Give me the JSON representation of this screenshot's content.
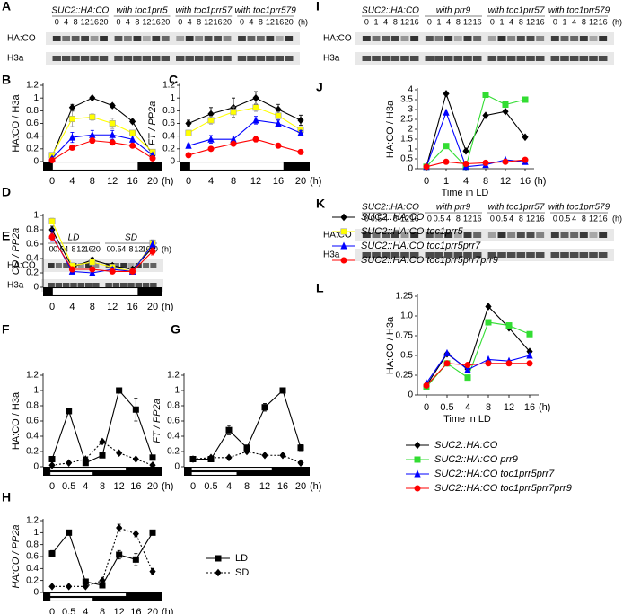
{
  "blots": [
    {
      "label": "A",
      "groups": [
        {
          "name": "SUC2::HA:CO",
          "times": [
            "0",
            "4",
            "8",
            "12",
            "16",
            "20"
          ]
        },
        {
          "name": "with toc1prr5",
          "times": [
            "0",
            "4",
            "8",
            "12",
            "16",
            "20"
          ]
        },
        {
          "name": "with toc1prr57",
          "times": [
            "0",
            "4",
            "8",
            "12",
            "16",
            "20"
          ]
        },
        {
          "name": "with toc1prr579",
          "times": [
            "0",
            "4",
            "8",
            "12",
            "16",
            "20"
          ]
        }
      ],
      "unit": "(h)",
      "rows": [
        "HA:CO",
        "H3a"
      ]
    },
    {
      "label": "E",
      "groups": [
        {
          "name": "LD",
          "times": [
            "0",
            "0.5",
            "4",
            "8",
            "12",
            "16",
            "20"
          ]
        },
        {
          "name": "SD",
          "times": [
            "0",
            "0.5",
            "4",
            "8",
            "12",
            "16",
            "20"
          ]
        }
      ],
      "unit": "(h)",
      "rows": [
        "HA:CO",
        "H3a"
      ]
    },
    {
      "label": "I",
      "groups": [
        {
          "name": "SUC2::HA:CO",
          "times": [
            "0",
            "1",
            "4",
            "8",
            "12",
            "16"
          ]
        },
        {
          "name": "with prr9",
          "times": [
            "0",
            "1",
            "4",
            "8",
            "12",
            "16"
          ]
        },
        {
          "name": "with toc1prr57",
          "times": [
            "0",
            "1",
            "4",
            "8",
            "12",
            "16"
          ]
        },
        {
          "name": "with toc1prr579",
          "times": [
            "0",
            "1",
            "4",
            "8",
            "12",
            "16"
          ]
        }
      ],
      "unit": "(h)",
      "rows": [
        "HA:CO",
        "H3a"
      ]
    },
    {
      "label": "K",
      "groups": [
        {
          "name": "SUC2::HA:CO",
          "times": [
            "0",
            "0.5",
            "4",
            "8",
            "12",
            "16"
          ]
        },
        {
          "name": "with prr9",
          "times": [
            "0",
            "0.5",
            "4",
            "8",
            "12",
            "16"
          ]
        },
        {
          "name": "with toc1prr57",
          "times": [
            "0",
            "0.5",
            "4",
            "8",
            "12",
            "16"
          ]
        },
        {
          "name": "with toc1prr579",
          "times": [
            "0",
            "0.5",
            "4",
            "8",
            "12",
            "16"
          ]
        }
      ],
      "unit": "(h)",
      "rows": [
        "HA:CO",
        "H3a"
      ]
    }
  ],
  "chart_data": [
    {
      "label": "B",
      "type": "line",
      "ylabel": "HA:CO / H3a",
      "categories": [
        "0",
        "4",
        "8",
        "12",
        "16",
        "20"
      ],
      "x_unit": "(h)",
      "ylim": [
        0,
        1.2
      ],
      "yticks": [
        0,
        0.2,
        0.4,
        0.6,
        0.8,
        1,
        1.2
      ],
      "series": [
        {
          "color": "#000000",
          "marker": "diamond",
          "values": [
            0.08,
            0.85,
            1.0,
            0.88,
            0.63,
            0.1
          ],
          "errors": [
            0.02,
            0.05,
            0.02,
            0.03,
            0.03,
            0.02
          ]
        },
        {
          "color": "#ffff00",
          "marker": "square",
          "values": [
            0.1,
            0.67,
            0.7,
            0.6,
            0.45,
            0.15
          ],
          "errors": [
            0.03,
            0.12,
            0.05,
            0.08,
            0.04,
            0.02
          ]
        },
        {
          "color": "#0000ff",
          "marker": "triangle",
          "values": [
            0.05,
            0.38,
            0.42,
            0.42,
            0.35,
            0.1
          ],
          "errors": [
            0.02,
            0.08,
            0.07,
            0.07,
            0.05,
            0.02
          ]
        },
        {
          "color": "#ff0000",
          "marker": "circle",
          "values": [
            0.02,
            0.22,
            0.33,
            0.3,
            0.25,
            0.05
          ],
          "errors": [
            0.02,
            0.04,
            0.04,
            0.03,
            0.03,
            0.02
          ]
        }
      ]
    },
    {
      "label": "C",
      "type": "line",
      "ylabel": "FT / PP2a",
      "categories": [
        "0",
        "4",
        "8",
        "12",
        "16",
        "20"
      ],
      "x_unit": "(h)",
      "ylim": [
        0,
        1.2
      ],
      "yticks": [
        0,
        0.2,
        0.4,
        0.6,
        0.8,
        1,
        1.2
      ],
      "series": [
        {
          "color": "#000000",
          "marker": "diamond",
          "values": [
            0.6,
            0.75,
            0.85,
            1.0,
            0.82,
            0.65
          ],
          "errors": [
            0.05,
            0.1,
            0.15,
            0.1,
            0.08,
            0.08
          ]
        },
        {
          "color": "#ffff00",
          "marker": "square",
          "values": [
            0.45,
            0.65,
            0.78,
            0.85,
            0.72,
            0.5
          ],
          "errors": [
            0.04,
            0.06,
            0.08,
            0.06,
            0.06,
            0.05
          ]
        },
        {
          "color": "#0000ff",
          "marker": "triangle",
          "values": [
            0.25,
            0.35,
            0.35,
            0.65,
            0.6,
            0.45
          ],
          "errors": [
            0.03,
            0.06,
            0.05,
            0.06,
            0.05,
            0.04
          ]
        },
        {
          "color": "#ff0000",
          "marker": "circle",
          "values": [
            0.1,
            0.2,
            0.28,
            0.35,
            0.25,
            0.15
          ],
          "errors": [
            0.02,
            0.02,
            0.03,
            0.04,
            0.03,
            0.02
          ]
        }
      ]
    },
    {
      "label": "D",
      "type": "line",
      "ylabel": "CO / PP2a",
      "categories": [
        "0",
        "4",
        "8",
        "12",
        "16",
        "20"
      ],
      "x_unit": "(h)",
      "ylim": [
        0,
        1
      ],
      "yticks": [
        0,
        0.2,
        0.4,
        0.6,
        0.8,
        1
      ],
      "series": [
        {
          "name": "SUC2::HA:CO",
          "color": "#000000",
          "marker": "diamond",
          "values": [
            0.8,
            0.28,
            0.38,
            0.3,
            0.25,
            0.55
          ],
          "errors": [
            0.05,
            0.03,
            0.03,
            0.03,
            0.03,
            0.05
          ]
        },
        {
          "name": "SUC2::HA:CO toc1prr5",
          "color": "#ffff00",
          "marker": "square",
          "values": [
            0.92,
            0.3,
            0.35,
            0.28,
            0.22,
            0.62
          ],
          "errors": [
            0.04,
            0.03,
            0.03,
            0.03,
            0.03,
            0.04
          ]
        },
        {
          "name": "SUC2::HA:CO toc1prr5prr7",
          "color": "#0000ff",
          "marker": "triangle",
          "values": [
            0.72,
            0.22,
            0.2,
            0.25,
            0.22,
            0.6
          ],
          "errors": [
            0.08,
            0.03,
            0.03,
            0.03,
            0.03,
            0.05
          ]
        },
        {
          "name": "SUC2::HA:CO toc1prr5prr7prr9",
          "color": "#ff0000",
          "marker": "circle",
          "values": [
            0.7,
            0.25,
            0.25,
            0.22,
            0.22,
            0.5
          ],
          "errors": [
            0.05,
            0.03,
            0.03,
            0.03,
            0.03,
            0.05
          ]
        }
      ]
    },
    {
      "label": "F",
      "type": "line",
      "ylabel": "HA:CO / H3a",
      "categories": [
        "0",
        "0.5",
        "4",
        "8",
        "12",
        "16",
        "20"
      ],
      "x_unit": "(h)",
      "ylim": [
        0,
        1.2
      ],
      "yticks": [
        0,
        0.2,
        0.4,
        0.6,
        0.8,
        1,
        1.2
      ],
      "series": [
        {
          "color": "#000000",
          "marker": "square",
          "dashed": false,
          "values": [
            0.1,
            0.73,
            0.05,
            0.15,
            1.0,
            0.75,
            0.12
          ],
          "errors": [
            0.02,
            0.03,
            0.02,
            0.02,
            0.02,
            0.15,
            0.03
          ]
        },
        {
          "color": "#000000",
          "marker": "diamond",
          "dashed": true,
          "values": [
            0.02,
            0.05,
            0.1,
            0.33,
            0.18,
            0.1,
            0.02
          ],
          "errors": [
            0.01,
            0.01,
            0.01,
            0.02,
            0.02,
            0.01,
            0.01
          ]
        }
      ]
    },
    {
      "label": "G",
      "type": "line",
      "ylabel": "FT / PP2a",
      "categories": [
        "0",
        "0.5",
        "4",
        "8",
        "12",
        "16",
        "20"
      ],
      "x_unit": "(h)",
      "ylim": [
        0,
        1.2
      ],
      "yticks": [
        0,
        0.2,
        0.4,
        0.6,
        0.8,
        1,
        1.2
      ],
      "series": [
        {
          "color": "#000000",
          "marker": "square",
          "dashed": false,
          "values": [
            0.1,
            0.1,
            0.48,
            0.25,
            0.78,
            1.0,
            0.25
          ],
          "errors": [
            0.02,
            0.02,
            0.06,
            0.03,
            0.05,
            0.03,
            0.04
          ]
        },
        {
          "color": "#000000",
          "marker": "diamond",
          "dashed": true,
          "values": [
            0.1,
            0.12,
            0.12,
            0.2,
            0.15,
            0.15,
            0.05
          ],
          "errors": [
            0.01,
            0.01,
            0.01,
            0.02,
            0.02,
            0.02,
            0.02
          ]
        }
      ]
    },
    {
      "label": "H",
      "type": "line",
      "ylabel": "HA:CO / PP2a",
      "categories": [
        "0",
        "0.5",
        "4",
        "8",
        "12",
        "16",
        "20"
      ],
      "x_unit": "(h)",
      "ylim": [
        0,
        1.2
      ],
      "yticks": [
        0,
        0.2,
        0.4,
        0.6,
        0.8,
        1,
        1.2
      ],
      "series": [
        {
          "name": "LD",
          "color": "#000000",
          "marker": "square",
          "dashed": false,
          "values": [
            0.65,
            1.0,
            0.18,
            0.12,
            0.63,
            0.55,
            1.0
          ],
          "errors": [
            0.05,
            0.04,
            0.03,
            0.02,
            0.07,
            0.1,
            0.03
          ]
        },
        {
          "name": "SD",
          "color": "#000000",
          "marker": "diamond",
          "dashed": true,
          "values": [
            0.1,
            0.1,
            0.1,
            0.2,
            1.08,
            0.98,
            0.35
          ],
          "errors": [
            0.01,
            0.01,
            0.01,
            0.02,
            0.06,
            0.05,
            0.05
          ]
        }
      ]
    },
    {
      "label": "J",
      "type": "line",
      "ylabel": "HA:CO / H3a",
      "xlabel": "Time in LD",
      "categories": [
        "0",
        "1",
        "4",
        "8",
        "12",
        "16"
      ],
      "x_unit": "(h)",
      "ylim": [
        0,
        4
      ],
      "yticks": [
        0,
        0.5,
        1,
        1.5,
        2,
        2.5,
        3,
        3.5,
        4
      ],
      "series": [
        {
          "color": "#000000",
          "marker": "diamond",
          "values": [
            0.1,
            3.8,
            0.9,
            2.7,
            2.9,
            1.6
          ]
        },
        {
          "color": "#33dd33",
          "marker": "square",
          "values": [
            0.1,
            1.15,
            0.1,
            3.75,
            3.25,
            3.5
          ]
        },
        {
          "color": "#0000ff",
          "marker": "triangle",
          "values": [
            0.1,
            2.85,
            0.1,
            0.2,
            0.45,
            0.35
          ]
        },
        {
          "color": "#ff0000",
          "marker": "circle",
          "values": [
            0.1,
            0.35,
            0.25,
            0.3,
            0.35,
            0.45
          ]
        }
      ]
    },
    {
      "label": "L",
      "type": "line",
      "ylabel": "HA:CO / H3a",
      "xlabel": "Time in LD",
      "categories": [
        "0",
        "0.5",
        "4",
        "8",
        "12",
        "16"
      ],
      "x_unit": "(h)",
      "ylim": [
        0,
        1.25
      ],
      "yticks": [
        0,
        0.25,
        0.5,
        0.75,
        {
          "value": 1,
          "label": "1.0"
        },
        1.25
      ],
      "series": [
        {
          "name": "SUC2::HA:CO",
          "color": "#000000",
          "marker": "diamond",
          "values": [
            0.12,
            0.52,
            0.33,
            1.12,
            0.85,
            0.55
          ]
        },
        {
          "name": "SUC2::HA:CO prr9",
          "color": "#33dd33",
          "marker": "square",
          "values": [
            0.1,
            0.4,
            0.22,
            0.92,
            0.88,
            0.77
          ]
        },
        {
          "name": "SUC2::HA:CO toc1prr5prr7",
          "color": "#0000ff",
          "marker": "triangle",
          "values": [
            0.15,
            0.53,
            0.32,
            0.45,
            0.43,
            0.5
          ]
        },
        {
          "name": "SUC2::HA:CO toc1prr5prr7prr9",
          "color": "#ff0000",
          "marker": "circle",
          "values": [
            0.12,
            0.4,
            0.38,
            0.4,
            0.4,
            0.4
          ]
        }
      ]
    }
  ]
}
